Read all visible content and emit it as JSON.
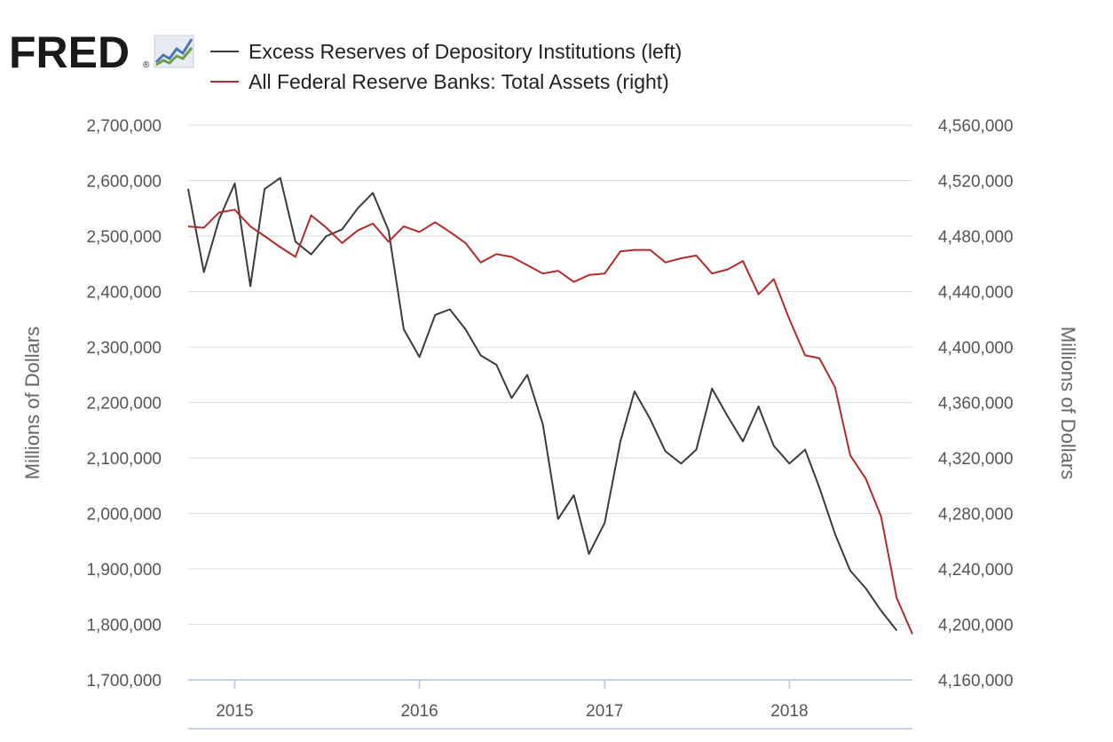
{
  "header": {
    "logo_text": "FRED",
    "logo_registered": "®"
  },
  "colors": {
    "series_left": "#3b3b3b",
    "series_right": "#b22b2b",
    "grid": "#dddddd",
    "axis": "#c3d2e6"
  },
  "chart_data": {
    "type": "line",
    "title": "",
    "xlabel": "",
    "ylabel_left": "Millions of Dollars",
    "ylabel_right": "Millions of Dollars",
    "grid": true,
    "legend_position": "top-left",
    "x_ticks": [
      "2015",
      "2016",
      "2017",
      "2018"
    ],
    "y_left": {
      "lim": [
        1700000,
        2700000
      ],
      "ticks": [
        1700000,
        1800000,
        1900000,
        2000000,
        2100000,
        2200000,
        2300000,
        2400000,
        2500000,
        2600000,
        2700000
      ],
      "tick_labels": [
        "1,700,000",
        "1,800,000",
        "1,900,000",
        "2,000,000",
        "2,100,000",
        "2,200,000",
        "2,300,000",
        "2,400,000",
        "2,500,000",
        "2,600,000",
        "2,700,000"
      ]
    },
    "y_right": {
      "lim": [
        4160000,
        4560000
      ],
      "ticks": [
        4160000,
        4200000,
        4240000,
        4280000,
        4320000,
        4360000,
        4400000,
        4440000,
        4480000,
        4520000,
        4560000
      ],
      "tick_labels": [
        "4,160,000",
        "4,200,000",
        "4,240,000",
        "4,280,000",
        "4,320,000",
        "4,360,000",
        "4,400,000",
        "4,440,000",
        "4,480,000",
        "4,520,000",
        "4,560,000"
      ]
    },
    "x_range": [
      "2014-10-01",
      "2018-09-01"
    ],
    "series": [
      {
        "name": "Excess Reserves of Depository Institutions (left)",
        "axis": "left",
        "color": "#3b3b3b",
        "x": [
          "2014-10-01",
          "2014-11-01",
          "2014-12-01",
          "2015-01-01",
          "2015-02-01",
          "2015-03-01",
          "2015-04-01",
          "2015-05-01",
          "2015-06-01",
          "2015-07-01",
          "2015-08-01",
          "2015-09-01",
          "2015-10-01",
          "2015-11-01",
          "2015-12-01",
          "2016-01-01",
          "2016-02-01",
          "2016-03-01",
          "2016-04-01",
          "2016-05-01",
          "2016-06-01",
          "2016-07-01",
          "2016-08-01",
          "2016-09-01",
          "2016-10-01",
          "2016-11-01",
          "2016-12-01",
          "2017-01-01",
          "2017-02-01",
          "2017-03-01",
          "2017-04-01",
          "2017-05-01",
          "2017-06-01",
          "2017-07-01",
          "2017-08-01",
          "2017-09-01",
          "2017-10-01",
          "2017-11-01",
          "2017-12-01",
          "2018-01-01",
          "2018-02-01",
          "2018-03-01",
          "2018-04-01",
          "2018-05-01",
          "2018-06-01",
          "2018-07-01",
          "2018-08-01"
        ],
        "values": [
          2585000,
          2435000,
          2530000,
          2595000,
          2410000,
          2585000,
          2605000,
          2490000,
          2467000,
          2500000,
          2512000,
          2550000,
          2578000,
          2510000,
          2332000,
          2282000,
          2358000,
          2368000,
          2332000,
          2285000,
          2268000,
          2208000,
          2250000,
          2160000,
          1990000,
          2033000,
          1927000,
          1983000,
          2130000,
          2220000,
          2170000,
          2112000,
          2090000,
          2115000,
          2225000,
          2175000,
          2130000,
          2193000,
          2122000,
          2090000,
          2115000,
          2047000,
          1963000,
          1897000,
          1865000,
          1825000,
          1789000
        ]
      },
      {
        "name": "All Federal Reserve Banks: Total Assets (right)",
        "axis": "right",
        "color": "#b22b2b",
        "x": [
          "2014-10-01",
          "2014-11-01",
          "2014-12-01",
          "2015-01-01",
          "2015-02-01",
          "2015-03-01",
          "2015-04-01",
          "2015-05-01",
          "2015-06-01",
          "2015-07-01",
          "2015-08-01",
          "2015-09-01",
          "2015-10-01",
          "2015-11-01",
          "2015-12-01",
          "2016-01-01",
          "2016-02-01",
          "2016-03-01",
          "2016-04-01",
          "2016-05-01",
          "2016-06-01",
          "2016-07-01",
          "2016-08-01",
          "2016-09-01",
          "2016-10-01",
          "2016-11-01",
          "2016-12-01",
          "2017-01-01",
          "2017-02-01",
          "2017-03-01",
          "2017-04-01",
          "2017-05-01",
          "2017-06-01",
          "2017-07-01",
          "2017-08-01",
          "2017-09-01",
          "2017-10-01",
          "2017-11-01",
          "2017-12-01",
          "2018-01-01",
          "2018-02-01",
          "2018-03-01",
          "2018-04-01",
          "2018-05-01",
          "2018-06-01",
          "2018-07-01",
          "2018-08-01",
          "2018-09-01"
        ],
        "values": [
          4487000,
          4486000,
          4497000,
          4499000,
          4487000,
          4480000,
          4472000,
          4465000,
          4495000,
          4486000,
          4475000,
          4484000,
          4489000,
          4476000,
          4487000,
          4483000,
          4490000,
          4483000,
          4475000,
          4461000,
          4467000,
          4465000,
          4459000,
          4453000,
          4455000,
          4447000,
          4452000,
          4453000,
          4469000,
          4470000,
          4470000,
          4461000,
          4464000,
          4466000,
          4453000,
          4456000,
          4462000,
          4438000,
          4449000,
          4420000,
          4394000,
          4392000,
          4371000,
          4322000,
          4305000,
          4278000,
          4219000,
          4193000
        ]
      }
    ]
  }
}
